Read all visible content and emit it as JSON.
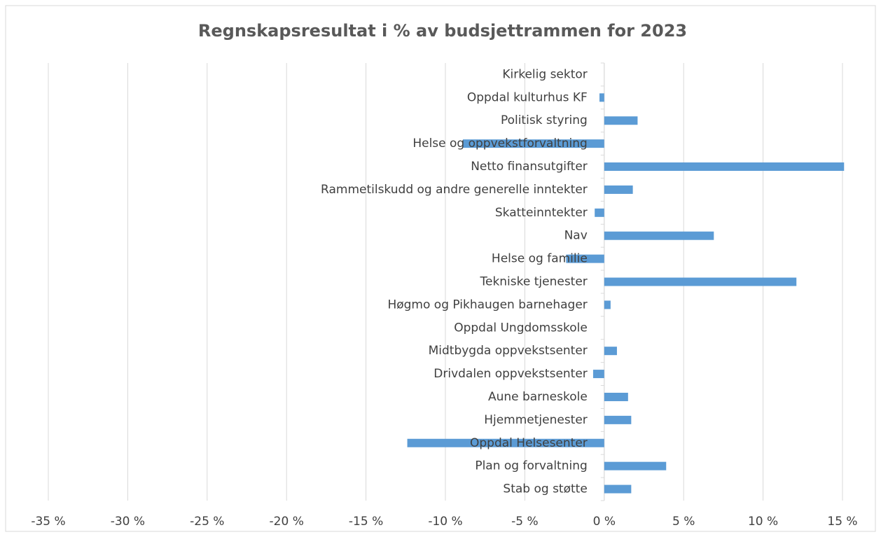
{
  "chart_data": {
    "type": "barh",
    "title": "Regnskapsresultat i % av budsjettrammen for 2023",
    "categories": [
      "Kirkelig sektor",
      "Oppdal kulturhus KF",
      "Politisk styring",
      "Helse og oppvekstforvaltning",
      "Netto finansutgifter",
      "Rammetilskudd og andre generelle inntekter",
      "Skatteinntekter",
      "Nav",
      "Helse og familie",
      "Tekniske tjenester",
      "Høgmo og Pikhaugen barnehager",
      "Oppdal Ungdomsskole",
      "Midtbygda oppvekstsenter",
      "Drivdalen oppvekstsenter",
      "Aune barneskole",
      "Hjemmetjenester",
      "Oppdal Helsesenter",
      "Plan og forvaltning",
      "Stab og støtte"
    ],
    "values": [
      0,
      -0.3,
      2.1,
      -8.9,
      15.1,
      1.8,
      -0.6,
      6.9,
      -2.4,
      12.1,
      0.4,
      0,
      0.8,
      -0.7,
      1.5,
      1.7,
      -12.4,
      3.9,
      1.7
    ],
    "color": "#5b9bd5",
    "xlim": [
      -35,
      15
    ],
    "xticks": [
      {
        "value": -35,
        "label": "-35 %"
      },
      {
        "value": -30,
        "label": "-30 %"
      },
      {
        "value": -25,
        "label": "-25 %"
      },
      {
        "value": -20,
        "label": "-20 %"
      },
      {
        "value": -15,
        "label": "-15 %"
      },
      {
        "value": -10,
        "label": "-10 %"
      },
      {
        "value": -5,
        "label": "-5 %"
      },
      {
        "value": 0,
        "label": "0 %"
      },
      {
        "value": 5,
        "label": "5 %"
      },
      {
        "value": 10,
        "label": "10 %"
      },
      {
        "value": 15,
        "label": "15 %"
      }
    ],
    "grid": true
  }
}
